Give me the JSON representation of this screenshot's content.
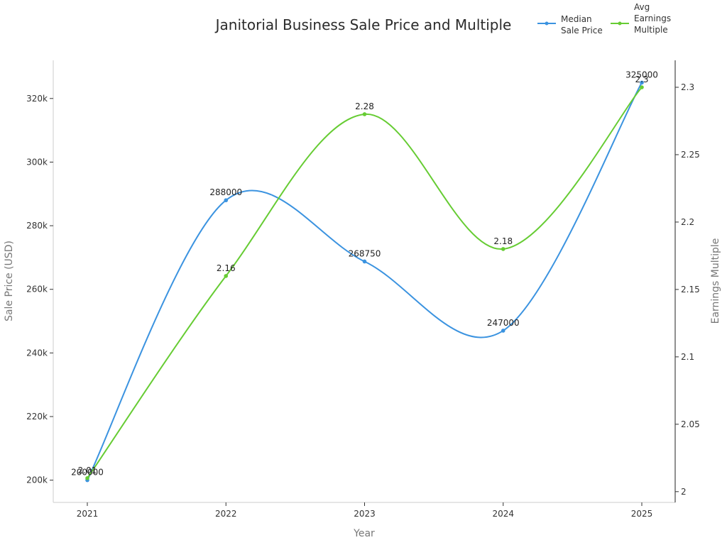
{
  "chart_data": {
    "type": "line",
    "title": "Janitorial Business Sale Price and Multiple",
    "xlabel": "Year",
    "ylabel_left": "Sale Price (USD)",
    "ylabel_right": "Earnings Multiple",
    "categories": [
      "2021",
      "2022",
      "2023",
      "2024",
      "2025"
    ],
    "series": [
      {
        "name": "Median Sale Price",
        "legend_lines": [
          "Median",
          "Sale Price"
        ],
        "axis": "left",
        "color": "#3b93e0",
        "values": [
          200000,
          288000,
          268750,
          247000,
          325000
        ],
        "labels": [
          "200000",
          "288000",
          "268750",
          "247000",
          "325000"
        ]
      },
      {
        "name": "Avg Earnings Multiple",
        "legend_lines": [
          "Avg",
          "Earnings",
          "Multiple"
        ],
        "axis": "right",
        "color": "#66cc33",
        "values": [
          2.01,
          2.16,
          2.28,
          2.18,
          2.3
        ],
        "labels": [
          "2.01",
          "2.16",
          "2.28",
          "2.18",
          "2.3"
        ]
      }
    ],
    "y_left": {
      "lim": [
        193000,
        332000
      ],
      "ticks": [
        200000,
        220000,
        240000,
        260000,
        280000,
        300000,
        320000
      ],
      "tick_labels": [
        "200k",
        "220k",
        "240k",
        "260k",
        "280k",
        "300k",
        "320k"
      ]
    },
    "y_right": {
      "lim": [
        1.992,
        2.32
      ],
      "ticks": [
        2,
        2.05,
        2.1,
        2.15,
        2.2,
        2.25,
        2.3
      ],
      "tick_labels": [
        "2",
        "2.05",
        "2.1",
        "2.15",
        "2.2",
        "2.25",
        "2.3"
      ]
    },
    "grid": false,
    "legend_position": "top-right"
  }
}
